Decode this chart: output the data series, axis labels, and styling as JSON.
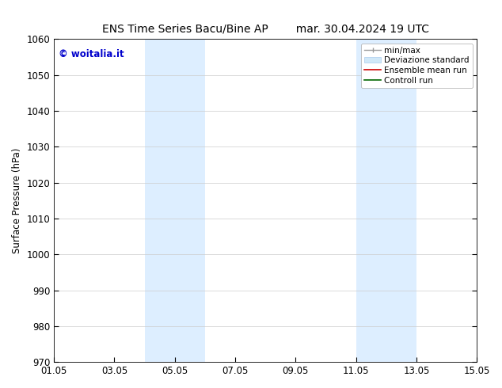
{
  "title_left": "ENS Time Series Bacu/Bine AP",
  "title_right": "mar. 30.04.2024 19 UTC",
  "ylabel": "Surface Pressure (hPa)",
  "ylim": [
    970,
    1060
  ],
  "yticks": [
    970,
    980,
    990,
    1000,
    1010,
    1020,
    1030,
    1040,
    1050,
    1060
  ],
  "xtick_labels": [
    "01.05",
    "03.05",
    "05.05",
    "07.05",
    "09.05",
    "11.05",
    "13.05",
    "15.05"
  ],
  "xtick_positions": [
    0,
    2,
    4,
    6,
    8,
    10,
    12,
    14
  ],
  "xlim": [
    0,
    14
  ],
  "shaded_regions": [
    {
      "start": 3.0,
      "end": 5.0,
      "color": "#ddeeff"
    },
    {
      "start": 10.0,
      "end": 12.0,
      "color": "#ddeeff"
    }
  ],
  "watermark_text": "© woitalia.it",
  "watermark_color": "#0000cc",
  "background_color": "#ffffff",
  "grid_color": "#cccccc",
  "title_fontsize": 10,
  "axis_fontsize": 8.5,
  "legend_fontsize": 7.5
}
